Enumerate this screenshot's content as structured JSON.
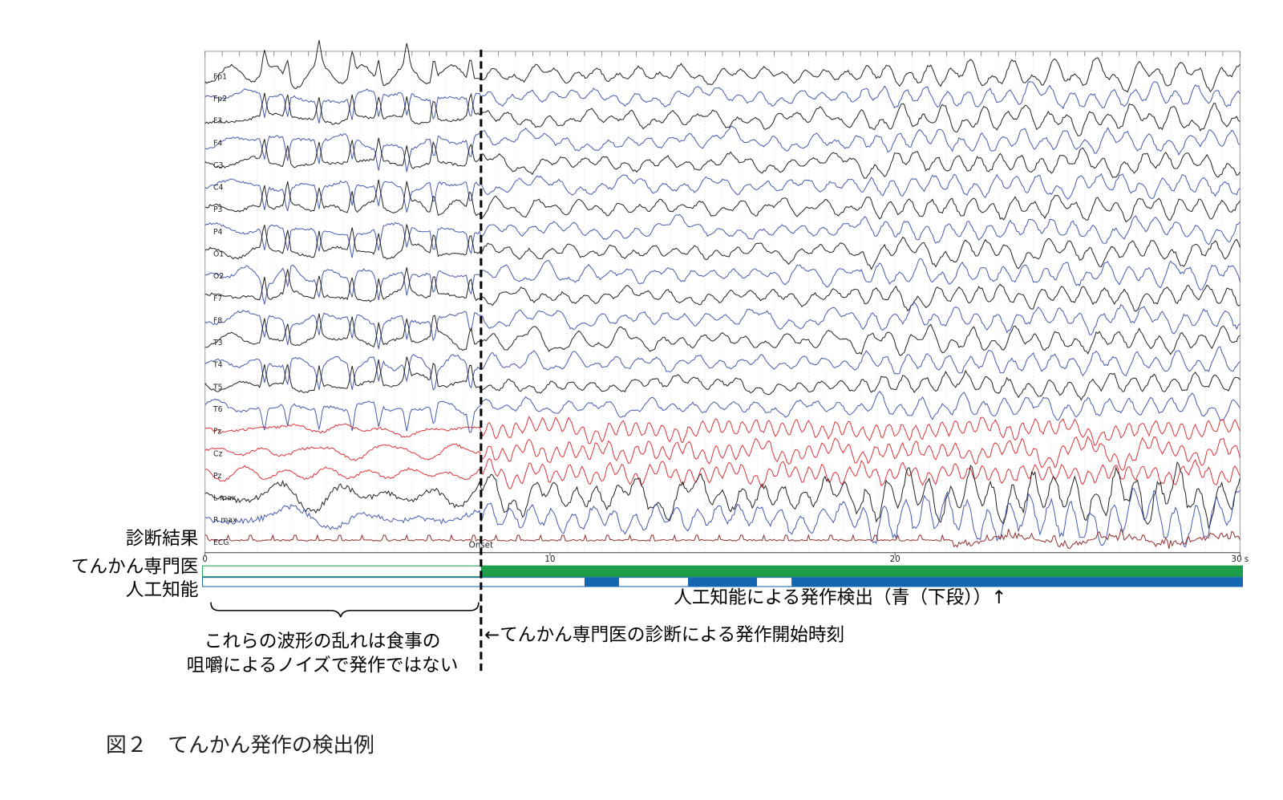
{
  "figure": {
    "channels": [
      {
        "label": "Fp1",
        "color": "#111111"
      },
      {
        "label": "Fp2",
        "color": "#3a4ea8"
      },
      {
        "label": "F3",
        "color": "#111111"
      },
      {
        "label": "F4",
        "color": "#3a4ea8"
      },
      {
        "label": "C3",
        "color": "#111111"
      },
      {
        "label": "C4",
        "color": "#3a4ea8"
      },
      {
        "label": "P3",
        "color": "#111111"
      },
      {
        "label": "P4",
        "color": "#3a4ea8"
      },
      {
        "label": "O1",
        "color": "#111111"
      },
      {
        "label": "O2",
        "color": "#3a4ea8"
      },
      {
        "label": "F7",
        "color": "#111111"
      },
      {
        "label": "F8",
        "color": "#3a4ea8"
      },
      {
        "label": "T3",
        "color": "#111111"
      },
      {
        "label": "T4",
        "color": "#3a4ea8"
      },
      {
        "label": "T5",
        "color": "#111111"
      },
      {
        "label": "T6",
        "color": "#3a4ea8"
      },
      {
        "label": "Fz",
        "color": "#d9252b"
      },
      {
        "label": "Cz",
        "color": "#d9252b"
      },
      {
        "label": "Pz",
        "color": "#d9252b"
      },
      {
        "label": "L max",
        "color": "#111111"
      },
      {
        "label": "R max",
        "color": "#3a4ea8"
      },
      {
        "label": "ECG",
        "color": "#8a2020"
      }
    ],
    "xlim": [
      0,
      30
    ],
    "xticks": [
      0,
      10,
      20,
      {
        "value": 30,
        "label": "30 s"
      }
    ],
    "onset_label": "Onset",
    "row_header": "診断結果",
    "expert": {
      "label": "てんかん専門医",
      "color": "#1e9e4a",
      "seizures": [
        {
          "start": 8,
          "end": 30
        }
      ]
    },
    "ai": {
      "label": "人工知能",
      "color": "#1466b0",
      "seizures": [
        {
          "start": 11,
          "end": 12
        },
        {
          "start": 14,
          "end": 16
        },
        {
          "start": 17,
          "end": 30
        }
      ]
    },
    "annotations": {
      "ai_detection": "人工知能による発作検出（青（下段））↑",
      "expert_onset": "←てんかん専門医の診断による発作開始時刻",
      "noise_note": [
        "これらの波形の乱れは食事の",
        "咀嚼によるノイズで発作ではない"
      ]
    },
    "caption": "図２　てんかん発作の検出例"
  }
}
